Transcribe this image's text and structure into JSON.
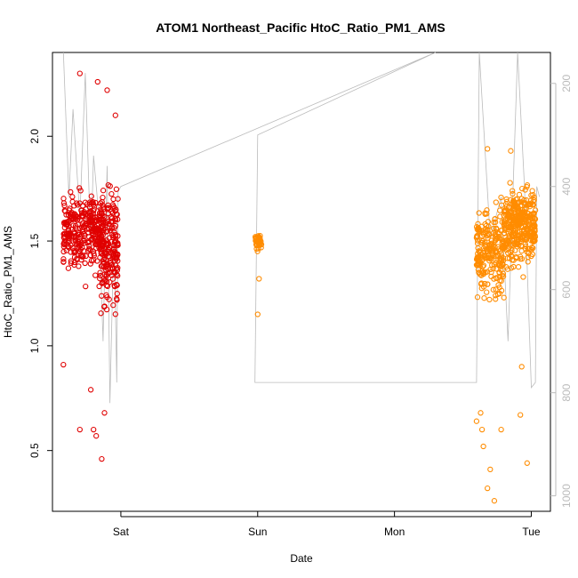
{
  "chart_data": {
    "type": "scatter",
    "title": "ATOM1 Northeast_Pacific HtoC_Ratio_PM1_AMS",
    "xlabel": "Date",
    "ylabel": "HtoC_Ratio_PM1_AMS",
    "x_ticks": [
      "Sat",
      "Sun",
      "Mon",
      "Tue"
    ],
    "xlim": [
      -0.5,
      3.14
    ],
    "ylim": [
      0.21,
      2.4
    ],
    "y_ticks": [
      0.5,
      1.0,
      1.5,
      2.0
    ],
    "y_tick_labels": [
      "0.5",
      "1.0",
      "1.5",
      "2.0"
    ],
    "secondary_axis": {
      "ticks": [
        200,
        400,
        600,
        800,
        1000
      ],
      "labels": [
        "200",
        "400",
        "600",
        "800",
        "1000"
      ],
      "range_top": 140,
      "range_bottom": 1030,
      "color": "#bbbbbb"
    },
    "grid": false,
    "legend": "none",
    "series": [
      {
        "color": "#e00000",
        "clusters": [
          {
            "x_start": -0.42,
            "x_end": -0.12,
            "y_min": 0.82,
            "y_max": 2.0,
            "y_center": 1.55,
            "count": 320
          },
          {
            "x_start": -0.16,
            "x_end": -0.02,
            "y_min": 0.46,
            "y_max": 2.3,
            "y_center": 1.45,
            "count": 190
          }
        ],
        "extremes": [
          [
            -0.3,
            2.3
          ],
          [
            -0.17,
            2.26
          ],
          [
            -0.1,
            2.22
          ],
          [
            -0.04,
            2.1
          ],
          [
            -0.14,
            0.46
          ],
          [
            -0.18,
            0.57
          ],
          [
            -0.2,
            0.6
          ],
          [
            -0.12,
            0.68
          ],
          [
            -0.3,
            0.6
          ],
          [
            -0.42,
            0.91
          ],
          [
            -0.22,
            0.79
          ]
        ]
      },
      {
        "color": "#ff8c00",
        "clusters": [
          {
            "x_start": 0.98,
            "x_end": 1.03,
            "y_min": 1.38,
            "y_max": 1.64,
            "y_center": 1.5,
            "count": 40
          },
          {
            "x_start": 2.6,
            "x_end": 2.8,
            "y_min": 0.62,
            "y_max": 1.94,
            "y_center": 1.45,
            "count": 230
          },
          {
            "x_start": 2.8,
            "x_end": 3.03,
            "y_min": 0.86,
            "y_max": 1.93,
            "y_center": 1.58,
            "count": 380
          }
        ],
        "extremes": [
          [
            1.0,
            1.15
          ],
          [
            1.01,
            1.32
          ],
          [
            2.73,
            0.26
          ],
          [
            2.68,
            0.32
          ],
          [
            2.7,
            0.41
          ],
          [
            2.65,
            0.52
          ],
          [
            2.64,
            0.6
          ],
          [
            2.78,
            0.6
          ],
          [
            2.63,
            0.68
          ],
          [
            2.92,
            0.67
          ],
          [
            2.97,
            0.44
          ],
          [
            2.68,
            1.94
          ],
          [
            2.85,
            1.93
          ],
          [
            2.93,
            0.9
          ],
          [
            2.6,
            0.64
          ]
        ]
      }
    ],
    "altitude_line": {
      "color": "#bbbbbb",
      "points": [
        [
          -0.42,
          140
        ],
        [
          -0.38,
          420
        ],
        [
          -0.35,
          250
        ],
        [
          -0.3,
          460
        ],
        [
          -0.26,
          180
        ],
        [
          -0.22,
          520
        ],
        [
          -0.2,
          340
        ],
        [
          -0.16,
          460
        ],
        [
          -0.13,
          700
        ],
        [
          -0.1,
          360
        ],
        [
          -0.08,
          820
        ],
        [
          -0.05,
          480
        ],
        [
          -0.03,
          780
        ],
        [
          -0.02,
          410
        ],
        [
          0.0,
          400
        ],
        [
          2.3,
          140
        ],
        [
          1.0,
          300
        ],
        [
          0.98,
          780
        ],
        [
          2.6,
          780
        ],
        [
          2.62,
          140
        ],
        [
          2.7,
          500
        ],
        [
          2.78,
          420
        ],
        [
          2.83,
          700
        ],
        [
          2.9,
          140
        ],
        [
          2.95,
          400
        ],
        [
          3.0,
          790
        ],
        [
          3.03,
          780
        ],
        [
          3.04,
          400
        ],
        [
          3.06,
          420
        ]
      ]
    }
  }
}
